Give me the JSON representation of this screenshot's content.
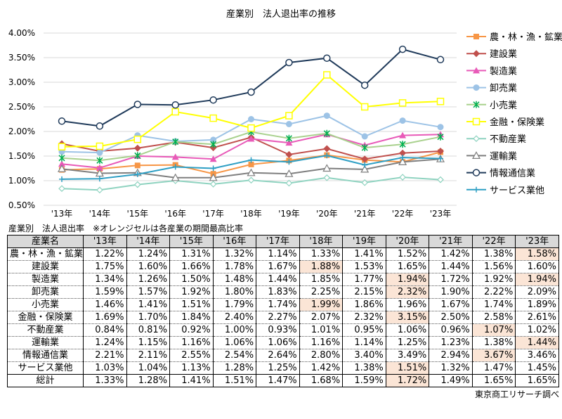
{
  "chart_data": {
    "type": "line",
    "title": "産業別　法人退出率の推移",
    "categories": [
      "'13年",
      "'14年",
      "'15年",
      "'16年",
      "'17年",
      "'18年",
      "'19年",
      "'20年",
      "'21年",
      "'22年",
      "'23年"
    ],
    "ylim": [
      0.5,
      4.0
    ],
    "yticks": [
      "0.50%",
      "1.00%",
      "1.50%",
      "2.00%",
      "2.50%",
      "3.00%",
      "3.50%",
      "4.00%"
    ],
    "ytick_values": [
      0.5,
      1.0,
      1.5,
      2.0,
      2.5,
      3.0,
      3.5,
      4.0
    ],
    "grid": true,
    "legend": "right",
    "series": [
      {
        "name": "農・林・漁・鉱業",
        "color": "#f79646",
        "marker": "square",
        "values": [
          1.22,
          1.24,
          1.31,
          1.32,
          1.14,
          1.33,
          1.41,
          1.52,
          1.42,
          1.38,
          1.58
        ]
      },
      {
        "name": "建設業",
        "color": "#c0504d",
        "marker": "diamond",
        "values": [
          1.75,
          1.6,
          1.66,
          1.78,
          1.67,
          1.88,
          1.53,
          1.65,
          1.44,
          1.56,
          1.6
        ]
      },
      {
        "name": "製造業",
        "color": "#e85ab8",
        "marker": "triangle",
        "values": [
          1.34,
          1.26,
          1.5,
          1.48,
          1.44,
          1.85,
          1.77,
          1.94,
          1.72,
          1.92,
          1.94
        ]
      },
      {
        "name": "卸売業",
        "color": "#9dc3e6",
        "marker": "circle",
        "values": [
          1.59,
          1.57,
          1.92,
          1.8,
          1.83,
          2.25,
          2.15,
          2.32,
          1.9,
          2.22,
          2.09
        ]
      },
      {
        "name": "小売業",
        "color": "#a9d18e",
        "marker": "asterisk",
        "marker_color": "#00b050",
        "values": [
          1.46,
          1.41,
          1.51,
          1.79,
          1.74,
          1.99,
          1.86,
          1.96,
          1.67,
          1.74,
          1.89
        ]
      },
      {
        "name": "金融・保険業",
        "color": "#ffff00",
        "marker": "open-square",
        "values": [
          1.69,
          1.7,
          1.84,
          2.4,
          2.27,
          2.07,
          2.32,
          3.15,
          2.5,
          2.58,
          2.61
        ]
      },
      {
        "name": "不動産業",
        "color": "#8fd3c0",
        "marker": "open-diamond",
        "values": [
          0.84,
          0.81,
          0.92,
          1.0,
          0.93,
          1.01,
          0.95,
          1.06,
          0.96,
          1.07,
          1.02
        ]
      },
      {
        "name": "運輸業",
        "color": "#7f7f7f",
        "marker": "open-triangle",
        "values": [
          1.24,
          1.15,
          1.16,
          1.06,
          1.06,
          1.16,
          1.14,
          1.25,
          1.23,
          1.38,
          1.44
        ]
      },
      {
        "name": "情報通信業",
        "color": "#1f3a5a",
        "marker": "open-circle",
        "values": [
          2.21,
          2.11,
          2.55,
          2.54,
          2.64,
          2.8,
          3.4,
          3.49,
          2.94,
          3.67,
          3.46
        ]
      },
      {
        "name": "サービス業他",
        "color": "#2e9fc4",
        "marker": "plus",
        "values": [
          1.03,
          1.04,
          1.13,
          1.28,
          1.25,
          1.42,
          1.38,
          1.51,
          1.32,
          1.47,
          1.45
        ]
      }
    ]
  },
  "table": {
    "title": "産業別　法人退出率　※オレンジセルは各産業の期間最高比率",
    "header": [
      "産業名",
      "'13年",
      "'14年",
      "'15年",
      "'16年",
      "'17年",
      "'18年",
      "'19年",
      "'20年",
      "'21年",
      "'22年",
      "'23年"
    ],
    "highlight_color": "#fbe5d6",
    "rows": [
      {
        "name": "農・林・漁・鉱業",
        "cells": [
          "1.22%",
          "1.24%",
          "1.31%",
          "1.32%",
          "1.14%",
          "1.33%",
          "1.41%",
          "1.52%",
          "1.42%",
          "1.38%",
          "1.58%"
        ],
        "highlight": [
          10
        ]
      },
      {
        "name": "建設業",
        "cells": [
          "1.75%",
          "1.60%",
          "1.66%",
          "1.78%",
          "1.67%",
          "1.88%",
          "1.53%",
          "1.65%",
          "1.44%",
          "1.56%",
          "1.60%"
        ],
        "highlight": [
          5
        ]
      },
      {
        "name": "製造業",
        "cells": [
          "1.34%",
          "1.26%",
          "1.50%",
          "1.48%",
          "1.44%",
          "1.85%",
          "1.77%",
          "1.94%",
          "1.72%",
          "1.92%",
          "1.94%"
        ],
        "highlight": [
          7,
          10
        ]
      },
      {
        "name": "卸売業",
        "cells": [
          "1.59%",
          "1.57%",
          "1.92%",
          "1.80%",
          "1.83%",
          "2.25%",
          "2.15%",
          "2.32%",
          "1.90%",
          "2.22%",
          "2.09%"
        ],
        "highlight": [
          7
        ]
      },
      {
        "name": "小売業",
        "cells": [
          "1.46%",
          "1.41%",
          "1.51%",
          "1.79%",
          "1.74%",
          "1.99%",
          "1.86%",
          "1.96%",
          "1.67%",
          "1.74%",
          "1.89%"
        ],
        "highlight": [
          5
        ]
      },
      {
        "name": "金融・保険業",
        "cells": [
          "1.69%",
          "1.70%",
          "1.84%",
          "2.40%",
          "2.27%",
          "2.07%",
          "2.32%",
          "3.15%",
          "2.50%",
          "2.58%",
          "2.61%"
        ],
        "highlight": [
          7
        ]
      },
      {
        "name": "不動産業",
        "cells": [
          "0.84%",
          "0.81%",
          "0.92%",
          "1.00%",
          "0.93%",
          "1.01%",
          "0.95%",
          "1.06%",
          "0.96%",
          "1.07%",
          "1.02%"
        ],
        "highlight": [
          9
        ]
      },
      {
        "name": "運輸業",
        "cells": [
          "1.24%",
          "1.15%",
          "1.16%",
          "1.06%",
          "1.06%",
          "1.16%",
          "1.14%",
          "1.25%",
          "1.23%",
          "1.38%",
          "1.44%"
        ],
        "highlight": [
          10
        ]
      },
      {
        "name": "情報通信業",
        "cells": [
          "2.21%",
          "2.11%",
          "2.55%",
          "2.54%",
          "2.64%",
          "2.80%",
          "3.40%",
          "3.49%",
          "2.94%",
          "3.67%",
          "3.46%"
        ],
        "highlight": [
          9
        ]
      },
      {
        "name": "サービス業他",
        "cells": [
          "1.03%",
          "1.04%",
          "1.13%",
          "1.28%",
          "1.25%",
          "1.42%",
          "1.38%",
          "1.51%",
          "1.32%",
          "1.47%",
          "1.45%"
        ],
        "highlight": [
          7
        ]
      },
      {
        "name": "総計",
        "cells": [
          "1.33%",
          "1.28%",
          "1.41%",
          "1.51%",
          "1.47%",
          "1.68%",
          "1.59%",
          "1.72%",
          "1.49%",
          "1.65%",
          "1.65%"
        ],
        "highlight": [
          7
        ],
        "total": true
      }
    ]
  },
  "source": "東京商工リサーチ調べ"
}
